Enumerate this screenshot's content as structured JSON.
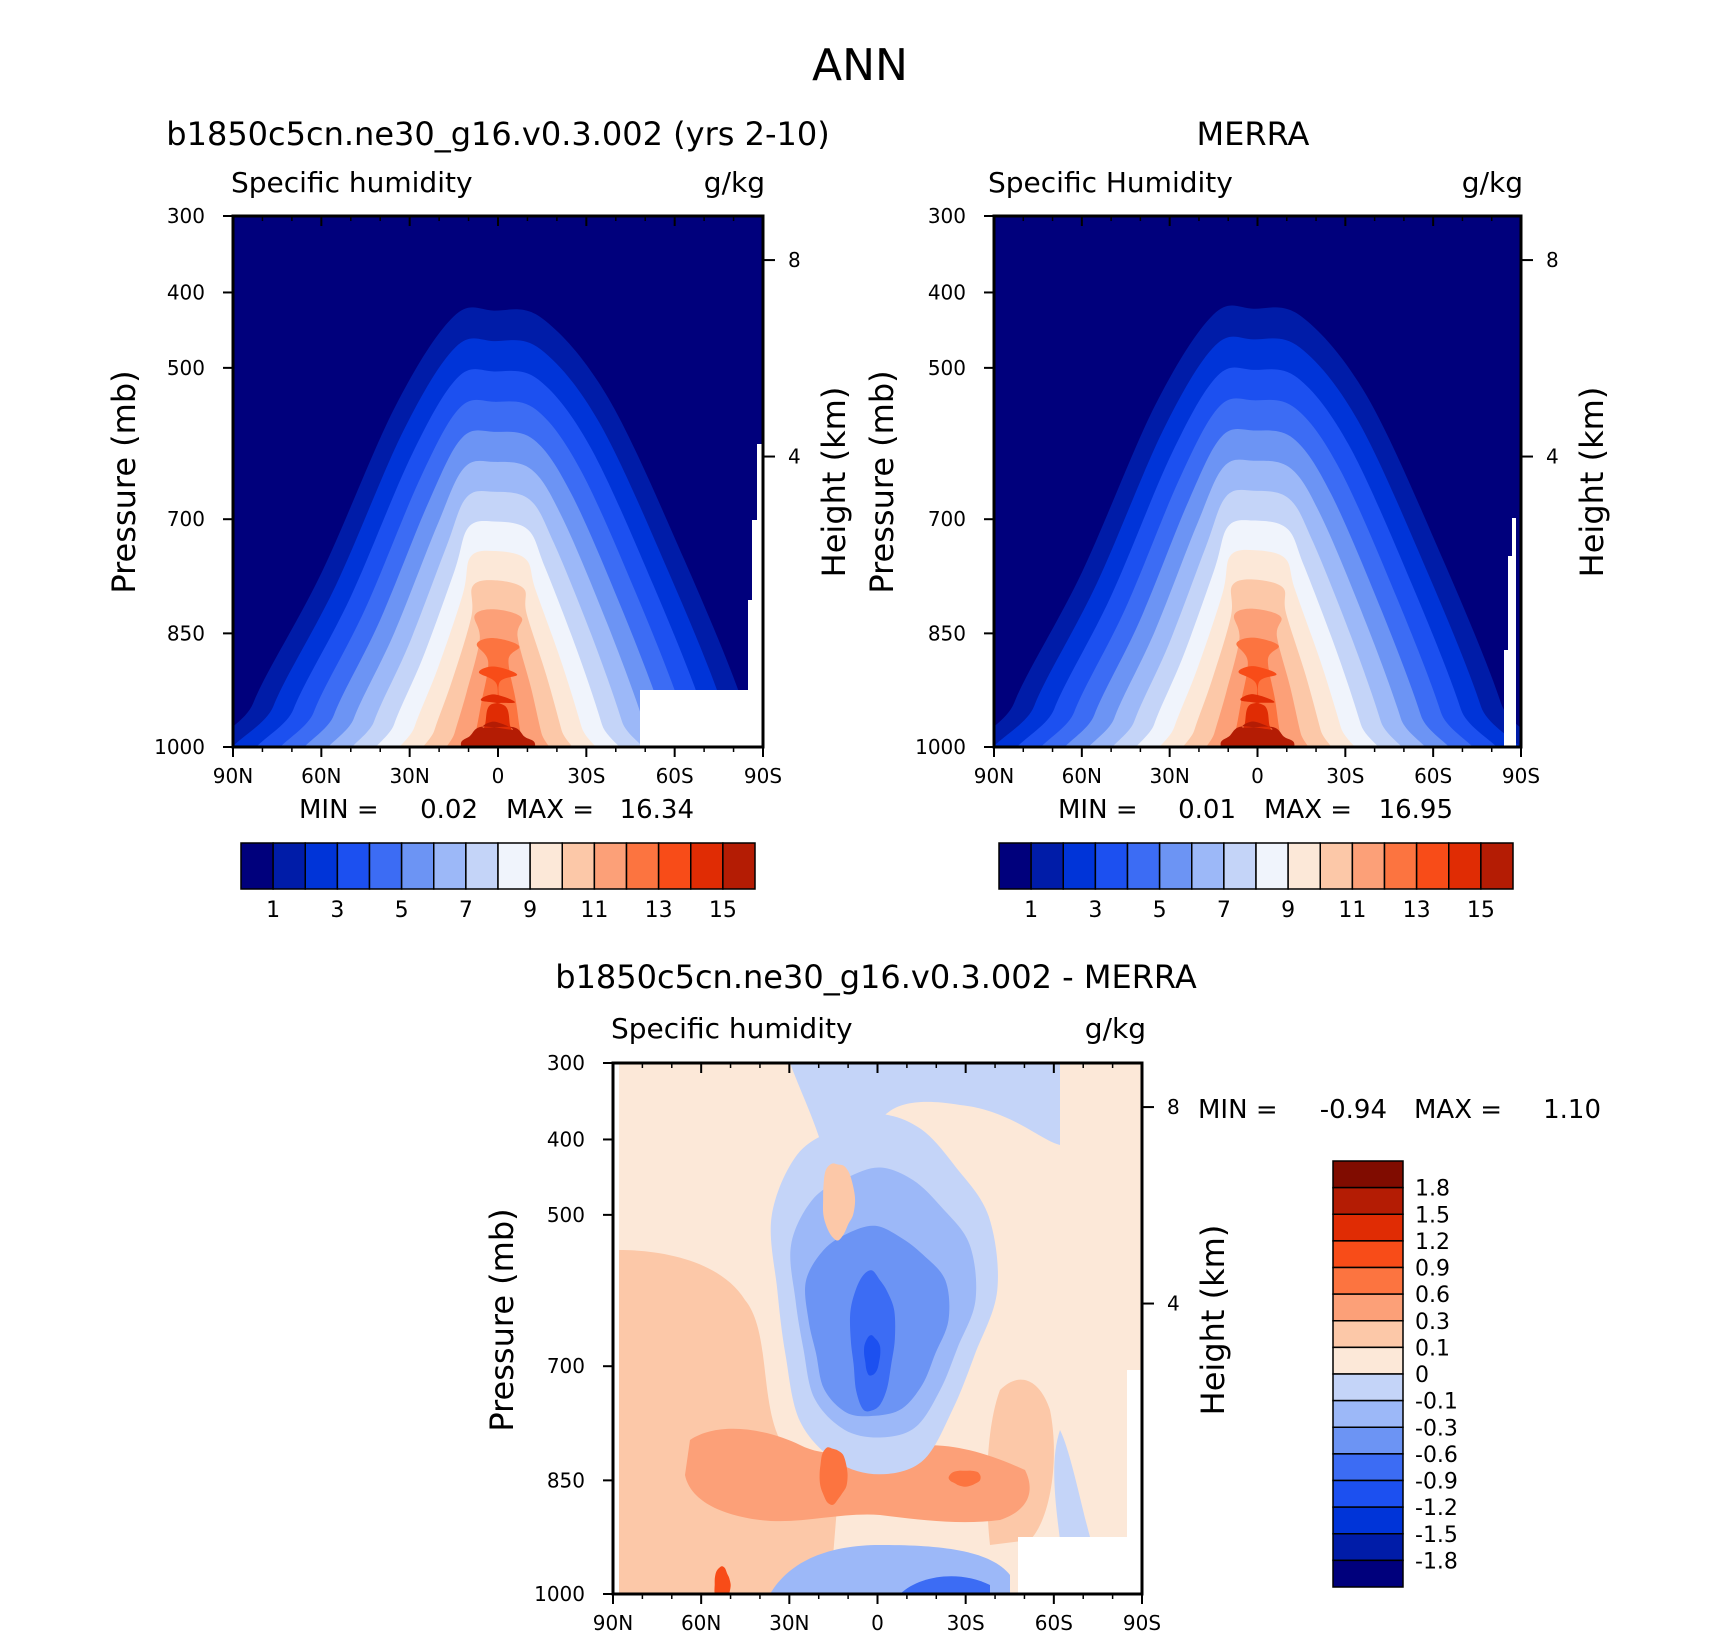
{
  "figure": {
    "title": "ANN"
  },
  "palettes": {
    "abs": [
      "#00007c",
      "#001ca8",
      "#0034d8",
      "#1c50f0",
      "#3c6cf4",
      "#6c94f4",
      "#9cb8f8",
      "#c4d4f8",
      "#f0f4fc",
      "#fce8d8",
      "#fcc8a8",
      "#fca078",
      "#fc7440",
      "#f84c18",
      "#e02c04",
      "#b41c04",
      "#800c00"
    ],
    "diff": [
      "#00007c",
      "#001ca8",
      "#0034d8",
      "#1c50f0",
      "#3c6cf4",
      "#6c94f4",
      "#9cb8f8",
      "#c4d4f8",
      "#fce8d8",
      "#fcc8a8",
      "#fca078",
      "#fc7440",
      "#f84c18",
      "#e02c04",
      "#b41c04",
      "#800c00"
    ]
  },
  "chart_data": [
    {
      "type": "heatmap",
      "title": "b1850c5cn.ne30_g16.v0.3.002 (yrs 2-10)",
      "variable": "Specific humidity",
      "units": "g/kg",
      "ylabel": "Pressure (mb)",
      "y2label": "Height (km)",
      "x_ticks": [
        "90N",
        "60N",
        "30N",
        "0",
        "30S",
        "60S",
        "90S"
      ],
      "y_ticks": [
        "300",
        "400",
        "500",
        "700",
        "850",
        "1000"
      ],
      "y2_ticks": [
        "8",
        "4"
      ],
      "ylim": [
        1000,
        300
      ],
      "min_label": "MIN =",
      "min_value": "0.02",
      "max_label": "MAX =",
      "max_value": "16.34",
      "colorbar_labels": [
        "1",
        "3",
        "5",
        "7",
        "9",
        "11",
        "13",
        "15"
      ],
      "field_peak": 16.34
    },
    {
      "type": "heatmap",
      "title": "MERRA",
      "variable": "Specific Humidity",
      "units": "g/kg",
      "ylabel": "Pressure (mb)",
      "y2label": "Height (km)",
      "x_ticks": [
        "90N",
        "60N",
        "30N",
        "0",
        "30S",
        "60S",
        "90S"
      ],
      "y_ticks": [
        "300",
        "400",
        "500",
        "700",
        "850",
        "1000"
      ],
      "y2_ticks": [
        "8",
        "4"
      ],
      "ylim": [
        1000,
        300
      ],
      "min_label": "MIN =",
      "min_value": "0.01",
      "max_label": "MAX =",
      "max_value": "16.95",
      "colorbar_labels": [
        "1",
        "3",
        "5",
        "7",
        "9",
        "11",
        "13",
        "15"
      ],
      "field_peak": 16.95
    },
    {
      "type": "heatmap",
      "title": "b1850c5cn.ne30_g16.v0.3.002 - MERRA",
      "variable": "Specific humidity",
      "units": "g/kg",
      "ylabel": "Pressure (mb)",
      "y2label": "Height (km)",
      "x_ticks": [
        "90N",
        "60N",
        "30N",
        "0",
        "30S",
        "60S",
        "90S"
      ],
      "y_ticks": [
        "300",
        "400",
        "500",
        "700",
        "850",
        "1000"
      ],
      "y2_ticks": [
        "8",
        "4"
      ],
      "ylim": [
        1000,
        300
      ],
      "min_label": "MIN =",
      "min_value": "-0.94",
      "max_label": "MAX =",
      "max_value": "1.10",
      "colorbar_labels": [
        "1.8",
        "1.5",
        "1.2",
        "0.9",
        "0.6",
        "0.3",
        "0.1",
        "0",
        "-0.1",
        "-0.3",
        "-0.6",
        "-0.9",
        "-1.2",
        "-1.5",
        "-1.8"
      ]
    }
  ]
}
